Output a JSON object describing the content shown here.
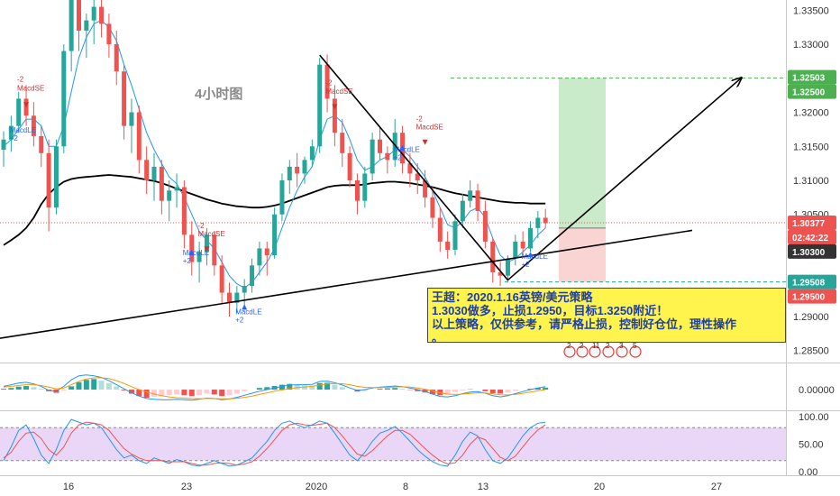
{
  "timeframe_label": "4小时图",
  "note": {
    "line1": "王超：2020.1.16英镑/美元策略",
    "line2": "1.3030做多，止损1.2950，目标1.3250附近！",
    "line3": "以上策略，仅供参考，请严格止损，控制好仓位，理性操作",
    "line4": "。"
  },
  "colors": {
    "up": "#26a69a",
    "down": "#ef5350",
    "ma": "#000000",
    "fast_ma": "#2196f3",
    "target_zone": "#b7e4b7",
    "stop_zone": "#f8c4c4",
    "target_line": "#4caf50",
    "stop_line": "#26a69a",
    "price_line": "#ef5350",
    "stoch_band": "#d8b7f0"
  },
  "chart_data": [
    {
      "type": "candlestick",
      "symbol_hint": "GBP/USD",
      "timeframe": "4h",
      "x_tick_labels": [
        "16",
        "23",
        "2020",
        "8",
        "13",
        "20",
        "27"
      ],
      "y_tick_labels": [
        "1.33500",
        "1.33000",
        "1.32500",
        "1.32000",
        "1.31500",
        "1.31000",
        "1.30500",
        "1.30000",
        "1.29500",
        "1.29000",
        "1.28500"
      ],
      "ylim": [
        1.2835,
        1.3365
      ],
      "candles_ohlc": [
        [
          1.3145,
          1.3172,
          1.312,
          1.316
        ],
        [
          1.316,
          1.3195,
          1.3142,
          1.318
        ],
        [
          1.318,
          1.323,
          1.317,
          1.322
        ],
        [
          1.322,
          1.324,
          1.318,
          1.3195
        ],
        [
          1.3195,
          1.3215,
          1.315,
          1.3165
        ],
        [
          1.3165,
          1.318,
          1.312,
          1.314
        ],
        [
          1.314,
          1.316,
          1.3025,
          1.306
        ],
        [
          1.306,
          1.316,
          1.305,
          1.315
        ],
        [
          1.315,
          1.33,
          1.314,
          1.329
        ],
        [
          1.329,
          1.338,
          1.326,
          1.337
        ],
        [
          1.337,
          1.338,
          1.329,
          1.332
        ],
        [
          1.332,
          1.3345,
          1.328,
          1.3335
        ],
        [
          1.3335,
          1.337,
          1.33,
          1.3355
        ],
        [
          1.3355,
          1.337,
          1.331,
          1.333
        ],
        [
          1.333,
          1.3345,
          1.328,
          1.33
        ],
        [
          1.33,
          1.332,
          1.324,
          1.326
        ],
        [
          1.326,
          1.327,
          1.316,
          1.318
        ],
        [
          1.318,
          1.322,
          1.314,
          1.32
        ],
        [
          1.32,
          1.321,
          1.311,
          1.313
        ],
        [
          1.313,
          1.315,
          1.308,
          1.31
        ],
        [
          1.31,
          1.314,
          1.307,
          1.312
        ],
        [
          1.312,
          1.313,
          1.305,
          1.307
        ],
        [
          1.307,
          1.31,
          1.304,
          1.3085
        ],
        [
          1.3085,
          1.311,
          1.306,
          1.309
        ],
        [
          1.309,
          1.31,
          1.3,
          1.302
        ],
        [
          1.302,
          1.304,
          1.296,
          1.298
        ],
        [
          1.298,
          1.301,
          1.295,
          1.2995
        ],
        [
          1.2995,
          1.303,
          1.2975,
          1.302
        ],
        [
          1.302,
          1.3025,
          1.296,
          1.2975
        ],
        [
          1.2975,
          1.299,
          1.292,
          1.2935
        ],
        [
          1.2935,
          1.295,
          1.29,
          1.292
        ],
        [
          1.292,
          1.2945,
          1.2905,
          1.2935
        ],
        [
          1.2935,
          1.2955,
          1.2915,
          1.2945
        ],
        [
          1.2945,
          1.2985,
          1.2935,
          1.2975
        ],
        [
          1.2975,
          1.301,
          1.296,
          1.3
        ],
        [
          1.3,
          1.301,
          1.296,
          1.299
        ],
        [
          1.299,
          1.306,
          1.2985,
          1.305
        ],
        [
          1.305,
          1.311,
          1.304,
          1.31
        ],
        [
          1.31,
          1.313,
          1.308,
          1.312
        ],
        [
          1.312,
          1.314,
          1.309,
          1.311
        ],
        [
          1.311,
          1.3135,
          1.3095,
          1.313
        ],
        [
          1.313,
          1.316,
          1.312,
          1.315
        ],
        [
          1.315,
          1.328,
          1.314,
          1.327
        ],
        [
          1.327,
          1.3285,
          1.32,
          1.322
        ],
        [
          1.322,
          1.324,
          1.315,
          1.317
        ],
        [
          1.317,
          1.319,
          1.312,
          1.314
        ],
        [
          1.314,
          1.315,
          1.309,
          1.31
        ],
        [
          1.31,
          1.311,
          1.305,
          1.307
        ],
        [
          1.307,
          1.312,
          1.306,
          1.311
        ],
        [
          1.311,
          1.317,
          1.31,
          1.316
        ],
        [
          1.316,
          1.318,
          1.313,
          1.314
        ],
        [
          1.314,
          1.315,
          1.311,
          1.313
        ],
        [
          1.313,
          1.319,
          1.312,
          1.317
        ],
        [
          1.317,
          1.318,
          1.311,
          1.3125
        ],
        [
          1.3125,
          1.314,
          1.309,
          1.311
        ],
        [
          1.311,
          1.3125,
          1.308,
          1.31
        ],
        [
          1.31,
          1.3115,
          1.306,
          1.3075
        ],
        [
          1.3075,
          1.309,
          1.303,
          1.3045
        ],
        [
          1.3045,
          1.306,
          1.2995,
          1.301
        ],
        [
          1.301,
          1.3025,
          1.2985,
          1.2998
        ],
        [
          1.2998,
          1.305,
          1.299,
          1.304
        ],
        [
          1.304,
          1.308,
          1.303,
          1.307
        ],
        [
          1.307,
          1.31,
          1.306,
          1.3085
        ],
        [
          1.3085,
          1.3095,
          1.304,
          1.3055
        ],
        [
          1.3055,
          1.307,
          1.3,
          1.301
        ],
        [
          1.301,
          1.3015,
          1.295,
          1.2965
        ],
        [
          1.2965,
          1.298,
          1.2945,
          1.296
        ],
        [
          1.296,
          1.299,
          1.295,
          1.2985
        ],
        [
          1.2985,
          1.302,
          1.2975,
          1.301
        ],
        [
          1.301,
          1.3025,
          1.299,
          1.3
        ],
        [
          1.3,
          1.304,
          1.2995,
          1.303
        ],
        [
          1.303,
          1.3055,
          1.3015,
          1.3045
        ],
        [
          1.3045,
          1.3058,
          1.303,
          1.3037
        ]
      ],
      "moving_average": [
        1.3005,
        1.3012,
        1.302,
        1.303,
        1.3045,
        1.3065,
        1.308,
        1.309,
        1.3098,
        1.3102,
        1.3104,
        1.3105,
        1.3106,
        1.3107,
        1.3108,
        1.3107,
        1.3106,
        1.3105,
        1.3103,
        1.3101,
        1.3099,
        1.3096,
        1.3092,
        1.3088,
        1.3084,
        1.308,
        1.3076,
        1.3072,
        1.3069,
        1.3066,
        1.3064,
        1.3062,
        1.3061,
        1.306,
        1.306,
        1.3061,
        1.3063,
        1.3066,
        1.307,
        1.3074,
        1.3078,
        1.3082,
        1.3086,
        1.309,
        1.3092,
        1.3093,
        1.3093,
        1.3093,
        1.3094,
        1.3096,
        1.3097,
        1.3098,
        1.3098,
        1.3097,
        1.3096,
        1.3094,
        1.3092,
        1.309,
        1.3087,
        1.3084,
        1.3081,
        1.3079,
        1.3077,
        1.3075,
        1.3073,
        1.3071,
        1.3069,
        1.3068,
        1.3067,
        1.3067,
        1.3066,
        1.3066,
        1.3066
      ],
      "fast_ma": [
        1.315,
        1.316,
        1.3175,
        1.319,
        1.319,
        1.318,
        1.315,
        1.315,
        1.318,
        1.323,
        1.328,
        1.331,
        1.333,
        1.3335,
        1.3325,
        1.3305,
        1.327,
        1.324,
        1.3205,
        1.317,
        1.3145,
        1.3125,
        1.3105,
        1.3095,
        1.3075,
        1.305,
        1.3025,
        1.3012,
        1.3,
        1.298,
        1.296,
        1.2948,
        1.2942,
        1.295,
        1.2965,
        1.298,
        1.3,
        1.303,
        1.306,
        1.3085,
        1.3105,
        1.312,
        1.316,
        1.319,
        1.3195,
        1.3185,
        1.316,
        1.313,
        1.3115,
        1.312,
        1.313,
        1.3135,
        1.3145,
        1.3145,
        1.3135,
        1.312,
        1.3105,
        1.3085,
        1.306,
        1.3035,
        1.303,
        1.304,
        1.3055,
        1.306,
        1.3045,
        1.3015,
        1.299,
        1.298,
        1.2985,
        1.2995,
        1.3005,
        1.302,
        1.303
      ],
      "current_price": "1.30377",
      "countdown": "02:42:22",
      "entry_price": "1.30300",
      "target_price": "1.32503",
      "target_level": "1.32500",
      "stop_price": "1.29508",
      "stop_level": "1.29500",
      "values": {
        "entry": 1.303,
        "target": 1.32503,
        "stop": 1.29508,
        "current": 1.30377
      },
      "signals": [
        {
          "label": "-2",
          "candle": 3,
          "price": 1.3245
        },
        {
          "label": "MacdSE",
          "candle": 3,
          "price": 1.3232
        },
        {
          "label": "MacdLE",
          "candle": 2,
          "price": 1.317
        },
        {
          "label": "+2",
          "candle": 2,
          "price": 1.3158
        },
        {
          "label": "-2",
          "candle": 27,
          "price": 1.303
        },
        {
          "label": "MacdSE",
          "candle": 27,
          "price": 1.3018
        },
        {
          "label": "MacdLE",
          "candle": 25,
          "price": 1.299
        },
        {
          "label": "+2",
          "candle": 25,
          "price": 1.2978
        },
        {
          "label": "MacdLE",
          "candle": 32,
          "price": 1.2903
        },
        {
          "label": "+2",
          "candle": 32,
          "price": 1.2891
        },
        {
          "label": "-2",
          "candle": 44,
          "price": 1.324
        },
        {
          "label": "MacdSE",
          "candle": 44,
          "price": 1.3227
        },
        {
          "label": "-2",
          "candle": 56,
          "price": 1.3187
        },
        {
          "label": "MacdSE",
          "candle": 56,
          "price": 1.3175
        },
        {
          "label": "MacdLE",
          "candle": 53,
          "price": 1.3142
        },
        {
          "label": "+2",
          "candle": 53,
          "price": 1.313
        },
        {
          "label": "MacdLE",
          "candle": 70,
          "price": 1.2985
        },
        {
          "label": "+2",
          "candle": 70,
          "price": 1.2973
        }
      ],
      "event_badges": [
        "2",
        "2",
        "11",
        "2",
        "3",
        "5"
      ]
    },
    {
      "type": "macd",
      "y_tick_labels": [
        "0.00000"
      ],
      "ylim": [
        -1,
        1
      ],
      "histogram": [
        0.05,
        0.1,
        0.18,
        0.22,
        0.15,
        0.05,
        -0.1,
        -0.2,
        -0.05,
        0.2,
        0.45,
        0.6,
        0.65,
        0.55,
        0.4,
        0.2,
        -0.05,
        -0.25,
        -0.4,
        -0.5,
        -0.45,
        -0.4,
        -0.35,
        -0.3,
        -0.35,
        -0.4,
        -0.35,
        -0.25,
        -0.3,
        -0.4,
        -0.35,
        -0.25,
        -0.1,
        0.0,
        0.1,
        0.15,
        0.22,
        0.3,
        0.35,
        0.3,
        0.25,
        0.25,
        0.4,
        0.42,
        0.3,
        0.15,
        0.0,
        -0.12,
        -0.1,
        0.0,
        0.05,
        0.08,
        0.1,
        0.05,
        -0.02,
        -0.1,
        -0.18,
        -0.28,
        -0.35,
        -0.3,
        -0.15,
        -0.05,
        0.02,
        0.0,
        -0.1,
        -0.22,
        -0.25,
        -0.18,
        -0.08,
        0.0,
        0.05,
        0.1,
        0.12
      ],
      "macd_line": [
        0.2,
        0.3,
        0.4,
        0.45,
        0.35,
        0.2,
        -0.05,
        -0.1,
        0.2,
        0.6,
        0.85,
        0.9,
        0.85,
        0.75,
        0.55,
        0.3,
        0.05,
        -0.2,
        -0.4,
        -0.55,
        -0.6,
        -0.62,
        -0.62,
        -0.6,
        -0.62,
        -0.65,
        -0.6,
        -0.52,
        -0.55,
        -0.62,
        -0.58,
        -0.48,
        -0.35,
        -0.22,
        -0.1,
        0.0,
        0.1,
        0.2,
        0.28,
        0.3,
        0.3,
        0.32,
        0.5,
        0.52,
        0.42,
        0.28,
        0.1,
        -0.05,
        0.0,
        0.1,
        0.15,
        0.18,
        0.22,
        0.18,
        0.1,
        0.0,
        -0.12,
        -0.28,
        -0.42,
        -0.45,
        -0.38,
        -0.25,
        -0.15,
        -0.12,
        -0.22,
        -0.38,
        -0.45,
        -0.38,
        -0.25,
        -0.12,
        0.0,
        0.1,
        0.18
      ],
      "signal_line": [
        0.15,
        0.2,
        0.25,
        0.3,
        0.3,
        0.25,
        0.15,
        0.05,
        0.1,
        0.3,
        0.5,
        0.65,
        0.72,
        0.73,
        0.68,
        0.55,
        0.38,
        0.18,
        0.0,
        -0.15,
        -0.28,
        -0.38,
        -0.45,
        -0.5,
        -0.52,
        -0.55,
        -0.56,
        -0.55,
        -0.55,
        -0.57,
        -0.57,
        -0.54,
        -0.48,
        -0.4,
        -0.3,
        -0.2,
        -0.1,
        -0.02,
        0.06,
        0.12,
        0.16,
        0.2,
        0.28,
        0.35,
        0.38,
        0.36,
        0.3,
        0.2,
        0.14,
        0.12,
        0.13,
        0.14,
        0.16,
        0.17,
        0.15,
        0.1,
        0.02,
        -0.08,
        -0.2,
        -0.28,
        -0.3,
        -0.28,
        -0.24,
        -0.2,
        -0.21,
        -0.26,
        -0.32,
        -0.33,
        -0.3,
        -0.23,
        -0.15,
        -0.07,
        0.0
      ]
    },
    {
      "type": "stochastic",
      "y_tick_labels": [
        "100.00",
        "50.00",
        "0.00"
      ],
      "ylim": [
        0,
        100
      ],
      "band": [
        20,
        80
      ],
      "k_line": [
        20,
        45,
        75,
        85,
        60,
        30,
        15,
        40,
        75,
        95,
        90,
        85,
        88,
        80,
        60,
        40,
        25,
        30,
        20,
        15,
        25,
        20,
        15,
        22,
        18,
        12,
        10,
        15,
        20,
        15,
        10,
        12,
        18,
        25,
        40,
        55,
        75,
        88,
        92,
        85,
        80,
        85,
        92,
        88,
        70,
        50,
        30,
        20,
        35,
        55,
        70,
        75,
        82,
        70,
        55,
        40,
        28,
        18,
        12,
        10,
        30,
        55,
        72,
        65,
        40,
        20,
        15,
        25,
        45,
        65,
        80,
        88,
        90
      ],
      "d_line": [
        25,
        35,
        55,
        70,
        72,
        60,
        40,
        30,
        45,
        70,
        85,
        90,
        88,
        85,
        75,
        58,
        42,
        32,
        25,
        20,
        20,
        20,
        18,
        18,
        18,
        15,
        12,
        12,
        15,
        16,
        15,
        12,
        14,
        18,
        28,
        42,
        58,
        75,
        85,
        88,
        85,
        84,
        86,
        88,
        80,
        65,
        48,
        32,
        28,
        38,
        52,
        65,
        75,
        75,
        68,
        55,
        42,
        30,
        20,
        14,
        16,
        30,
        50,
        63,
        58,
        42,
        26,
        20,
        28,
        45,
        62,
        76,
        85
      ]
    }
  ]
}
